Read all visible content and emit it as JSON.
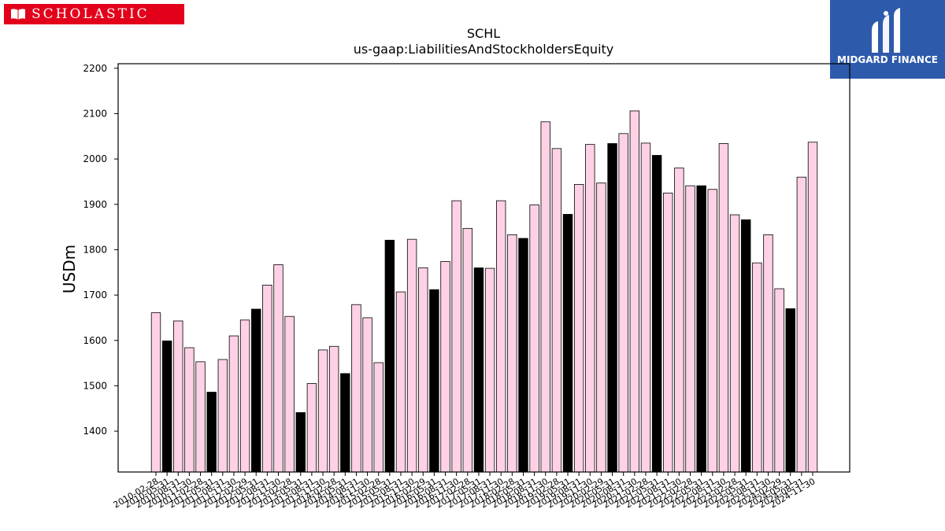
{
  "logo_left": {
    "text": "SCHOLASTIC",
    "icon": "open-book-icon",
    "color": "#e3001b"
  },
  "logo_right": {
    "text": "MIDGARD FINANCE",
    "icon": "midgard-m-icon",
    "color": "#2e5aac"
  },
  "chart_data": {
    "type": "bar",
    "title": "SCHL",
    "subtitle": "us-gaap:LiabilitiesAndStockholdersEquity",
    "xlabel": "",
    "ylabel": "USDm",
    "ylim": [
      1310,
      2210
    ],
    "yticks": [
      1400,
      1500,
      1600,
      1700,
      1800,
      1900,
      2000,
      2100,
      2200
    ],
    "grid": false,
    "colors": {
      "fill": "#ffd1e6",
      "highlight": "#000000",
      "edge": "#000000"
    },
    "categories": [
      "2010-02-28",
      "2010-05-31",
      "2010-08-31",
      "2010-11-30",
      "2011-02-28",
      "2011-05-31",
      "2011-08-31",
      "2011-11-30",
      "2012-02-29",
      "2012-05-31",
      "2012-08-31",
      "2012-11-30",
      "2013-02-28",
      "2013-05-31",
      "2013-08-31",
      "2013-11-30",
      "2014-02-28",
      "2014-05-31",
      "2014-08-31",
      "2014-11-30",
      "2015-02-28",
      "2015-05-31",
      "2015-08-31",
      "2015-11-30",
      "2016-02-29",
      "2016-05-31",
      "2016-08-31",
      "2016-11-30",
      "2017-02-28",
      "2017-05-31",
      "2017-08-31",
      "2017-11-30",
      "2018-02-28",
      "2018-05-31",
      "2018-08-31",
      "2018-11-30",
      "2019-02-28",
      "2019-05-31",
      "2019-08-31",
      "2019-11-30",
      "2020-02-29",
      "2020-05-31",
      "2020-08-31",
      "2020-11-30",
      "2021-02-28",
      "2021-05-31",
      "2021-08-31",
      "2021-11-30",
      "2022-02-28",
      "2022-05-31",
      "2022-08-31",
      "2022-11-30",
      "2023-02-28",
      "2023-05-31",
      "2023-08-31",
      "2023-11-30",
      "2024-02-29",
      "2024-05-31",
      "2024-08-31",
      "2024-11-30"
    ],
    "values": [
      1661,
      1599,
      1643,
      1584,
      1553,
      1486,
      1558,
      1610,
      1645,
      1669,
      1722,
      1767,
      1653,
      1441,
      1505,
      1579,
      1587,
      1527,
      1679,
      1650,
      1551,
      1821,
      1707,
      1823,
      1760,
      1712,
      1774,
      1908,
      1847,
      1760,
      1759,
      1908,
      1833,
      1825,
      1899,
      2082,
      2023,
      1878,
      1944,
      2032,
      1947,
      2034,
      2056,
      2106,
      2035,
      2008,
      1925,
      1980,
      1941,
      1941,
      1933,
      2034,
      1877,
      1866,
      1771,
      1833,
      1714,
      1670,
      1960,
      2037
    ],
    "highlight_months": [
      "05-31"
    ]
  }
}
